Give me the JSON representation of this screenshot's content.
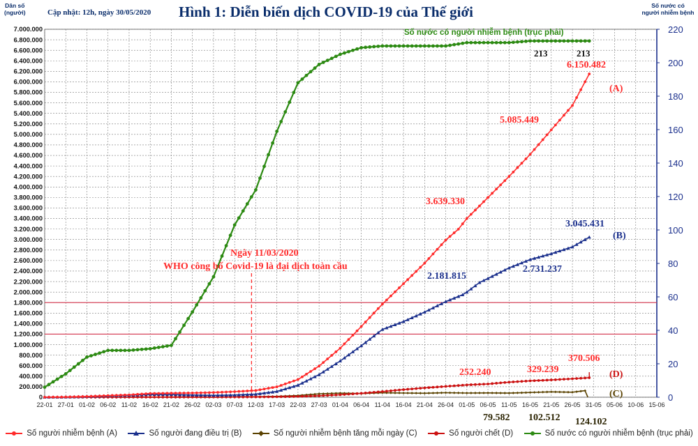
{
  "header": {
    "left_axis_title_line1": "Dân số",
    "left_axis_title_line2": "(người)",
    "updated": "Cập nhật: 12h, ngày 30/05/2020",
    "title": "Hình 1: Diễn biến dịch COVID-19 của Thế giới",
    "right_axis_title_line1": "Số nước có",
    "right_axis_title_line2": "người nhiễm bệnh"
  },
  "colors": {
    "A": "#ff2a2a",
    "B": "#1a2f8c",
    "C": "#5a4200",
    "D": "#cc1111",
    "E": "#2c8a12",
    "grid": "#7a7a7a",
    "hline": "#d2324a",
    "right_axis": "#1a2f8c"
  },
  "chart_data": {
    "type": "line",
    "title": "Hình 1: Diễn biến dịch COVID-19 của Thế giới",
    "ylabel": "Dân số (người)",
    "y2label": "Số nước có người nhiễm bệnh",
    "ylim": [
      0,
      7000000
    ],
    "y_tick_step": 200000,
    "y2lim": [
      0,
      220
    ],
    "y2_tick_step": 20,
    "x_ticks": [
      "22-01",
      "27-01",
      "01-02",
      "06-02",
      "11-02",
      "16-02",
      "21-02",
      "26-02",
      "02-03",
      "07-03",
      "12-03",
      "17-03",
      "22-03",
      "27-03",
      "01-04",
      "06-04",
      "11-04",
      "16-04",
      "21-04",
      "26-04",
      "01-05",
      "06-05",
      "11-05",
      "16-05",
      "21-05",
      "26-05",
      "31-05",
      "05-06",
      "10-06",
      "15-06"
    ],
    "grid": true,
    "horizontal_lines": [
      1800000,
      1200000
    ],
    "series": [
      {
        "key": "A",
        "name": "Số người nhiễm bệnh (A)",
        "axis": "left",
        "marker": "circle",
        "points": [
          [
            "22-01",
            600
          ],
          [
            "27-01",
            4500
          ],
          [
            "01-02",
            14500
          ],
          [
            "06-02",
            31000
          ],
          [
            "11-02",
            45000
          ],
          [
            "16-02",
            71000
          ],
          [
            "21-02",
            77000
          ],
          [
            "26-02",
            81000
          ],
          [
            "02-03",
            90000
          ],
          [
            "07-03",
            106000
          ],
          [
            "12-03",
            128000
          ],
          [
            "17-03",
            198000
          ],
          [
            "22-03",
            337000
          ],
          [
            "27-03",
            593000
          ],
          [
            "01-04",
            932000
          ],
          [
            "06-04",
            1346000
          ],
          [
            "11-04",
            1772000
          ],
          [
            "16-04",
            2160000
          ],
          [
            "21-04",
            2550000
          ],
          [
            "26-04",
            2990000
          ],
          [
            "29-04",
            3197000
          ],
          [
            "01-05",
            3400000
          ],
          [
            "04-05",
            3639330
          ],
          [
            "06-05",
            3800000
          ],
          [
            "11-05",
            4200000
          ],
          [
            "16-05",
            4620000
          ],
          [
            "21-05",
            5085449
          ],
          [
            "26-05",
            5550000
          ],
          [
            "30-05",
            6150482
          ]
        ]
      },
      {
        "key": "B",
        "name": "Số người đang điều trị (B)",
        "axis": "left",
        "marker": "triangle",
        "points": [
          [
            "22-01",
            500
          ],
          [
            "27-01",
            4300
          ],
          [
            "01-02",
            13500
          ],
          [
            "06-02",
            27000
          ],
          [
            "11-02",
            38000
          ],
          [
            "16-02",
            55000
          ],
          [
            "21-02",
            52000
          ],
          [
            "26-02",
            42000
          ],
          [
            "02-03",
            36000
          ],
          [
            "07-03",
            42000
          ],
          [
            "12-03",
            58000
          ],
          [
            "17-03",
            110000
          ],
          [
            "22-03",
            230000
          ],
          [
            "27-03",
            430000
          ],
          [
            "01-04",
            690000
          ],
          [
            "06-04",
            980000
          ],
          [
            "11-04",
            1290000
          ],
          [
            "16-04",
            1440000
          ],
          [
            "21-04",
            1620000
          ],
          [
            "26-04",
            1820000
          ],
          [
            "30-04",
            1950000
          ],
          [
            "01-05",
            2000000
          ],
          [
            "04-05",
            2181815
          ],
          [
            "06-05",
            2260000
          ],
          [
            "11-05",
            2460000
          ],
          [
            "16-05",
            2620000
          ],
          [
            "21-05",
            2731237
          ],
          [
            "26-05",
            2860000
          ],
          [
            "30-05",
            3045431
          ]
        ]
      },
      {
        "key": "C",
        "name": "Số người nhiễm bệnh tăng mỗi ngày (C)",
        "axis": "left",
        "marker": "diamond",
        "points": [
          [
            "22-01",
            100
          ],
          [
            "27-01",
            900
          ],
          [
            "01-02",
            2600
          ],
          [
            "06-02",
            3700
          ],
          [
            "11-02",
            2500
          ],
          [
            "16-02",
            2100
          ],
          [
            "21-02",
            1000
          ],
          [
            "26-02",
            800
          ],
          [
            "02-03",
            1800
          ],
          [
            "07-03",
            4000
          ],
          [
            "12-03",
            7500
          ],
          [
            "17-03",
            16000
          ],
          [
            "22-03",
            32000
          ],
          [
            "27-03",
            64000
          ],
          [
            "01-04",
            77000
          ],
          [
            "06-04",
            70000
          ],
          [
            "11-04",
            85000
          ],
          [
            "16-04",
            80000
          ],
          [
            "21-04",
            76000
          ],
          [
            "26-04",
            86000
          ],
          [
            "01-05",
            79582
          ],
          [
            "06-05",
            82000
          ],
          [
            "11-05",
            78000
          ],
          [
            "16-05",
            90000
          ],
          [
            "21-05",
            102512
          ],
          [
            "26-05",
            95000
          ],
          [
            "29-05",
            124102
          ]
        ]
      },
      {
        "key": "D",
        "name": "Số người chết (D)",
        "axis": "left",
        "marker": "circle",
        "points": [
          [
            "22-01",
            17
          ],
          [
            "27-01",
            106
          ],
          [
            "01-02",
            304
          ],
          [
            "06-02",
            565
          ],
          [
            "11-02",
            1113
          ],
          [
            "16-02",
            1770
          ],
          [
            "21-02",
            2250
          ],
          [
            "26-02",
            2770
          ],
          [
            "02-03",
            3060
          ],
          [
            "07-03",
            3600
          ],
          [
            "12-03",
            4720
          ],
          [
            "17-03",
            7960
          ],
          [
            "22-03",
            14600
          ],
          [
            "27-03",
            27300
          ],
          [
            "01-04",
            46900
          ],
          [
            "06-04",
            74600
          ],
          [
            "11-04",
            108000
          ],
          [
            "16-04",
            145000
          ],
          [
            "21-04",
            177000
          ],
          [
            "26-04",
            206000
          ],
          [
            "01-05",
            234000
          ],
          [
            "06-05",
            252240
          ],
          [
            "11-05",
            287000
          ],
          [
            "16-05",
            311000
          ],
          [
            "21-05",
            329239
          ],
          [
            "26-05",
            351000
          ],
          [
            "30-05",
            370506
          ]
        ]
      },
      {
        "key": "E",
        "name": "Số nước có người nhiễm bệnh (trục phải)",
        "axis": "right",
        "marker": "circle",
        "points": [
          [
            "22-01",
            6
          ],
          [
            "27-01",
            14
          ],
          [
            "01-02",
            24
          ],
          [
            "06-02",
            28
          ],
          [
            "11-02",
            28
          ],
          [
            "16-02",
            29
          ],
          [
            "21-02",
            31
          ],
          [
            "26-02",
            51
          ],
          [
            "02-03",
            72
          ],
          [
            "07-03",
            103
          ],
          [
            "12-03",
            124
          ],
          [
            "17-03",
            159
          ],
          [
            "22-03",
            188
          ],
          [
            "27-03",
            199
          ],
          [
            "01-04",
            205
          ],
          [
            "06-04",
            209
          ],
          [
            "11-04",
            210
          ],
          [
            "16-04",
            210
          ],
          [
            "21-04",
            210
          ],
          [
            "26-04",
            210
          ],
          [
            "01-05",
            212
          ],
          [
            "06-05",
            212
          ],
          [
            "11-05",
            212
          ],
          [
            "16-05",
            213
          ],
          [
            "21-05",
            213
          ],
          [
            "26-05",
            213
          ],
          [
            "30-05",
            213
          ]
        ]
      }
    ],
    "annotations": [
      {
        "text": "Số nước có người nhiễm bệnh (trục phải)",
        "color": "E"
      },
      {
        "text": "213",
        "color": "#111111"
      },
      {
        "text": "213",
        "color": "#111111"
      },
      {
        "text": "6.150.482",
        "color": "A"
      },
      {
        "text": "(A)",
        "color": "A"
      },
      {
        "text": "5.085.449",
        "color": "A"
      },
      {
        "text": "3.639.330",
        "color": "A"
      },
      {
        "text": "3.045.431",
        "color": "B"
      },
      {
        "text": "(B)",
        "color": "B"
      },
      {
        "text": "2.181.815",
        "color": "B"
      },
      {
        "text": "2.731.237",
        "color": "B"
      },
      {
        "text": "Ngày 11/03/2020",
        "color": "A"
      },
      {
        "text": "WHO công bố Covid-19 là đại dịch toàn cầu",
        "color": "A"
      },
      {
        "text": "252.240",
        "color": "A"
      },
      {
        "text": "329.239",
        "color": "A"
      },
      {
        "text": "370.506",
        "color": "A"
      },
      {
        "text": "(D)",
        "color": "D"
      },
      {
        "text": "(C)",
        "color": "C"
      },
      {
        "text": "79.582",
        "color": "#2a2200"
      },
      {
        "text": "102.512",
        "color": "#2a2200"
      },
      {
        "text": "124.102",
        "color": "#2a2200"
      }
    ],
    "who_marker_date": "11-03"
  }
}
